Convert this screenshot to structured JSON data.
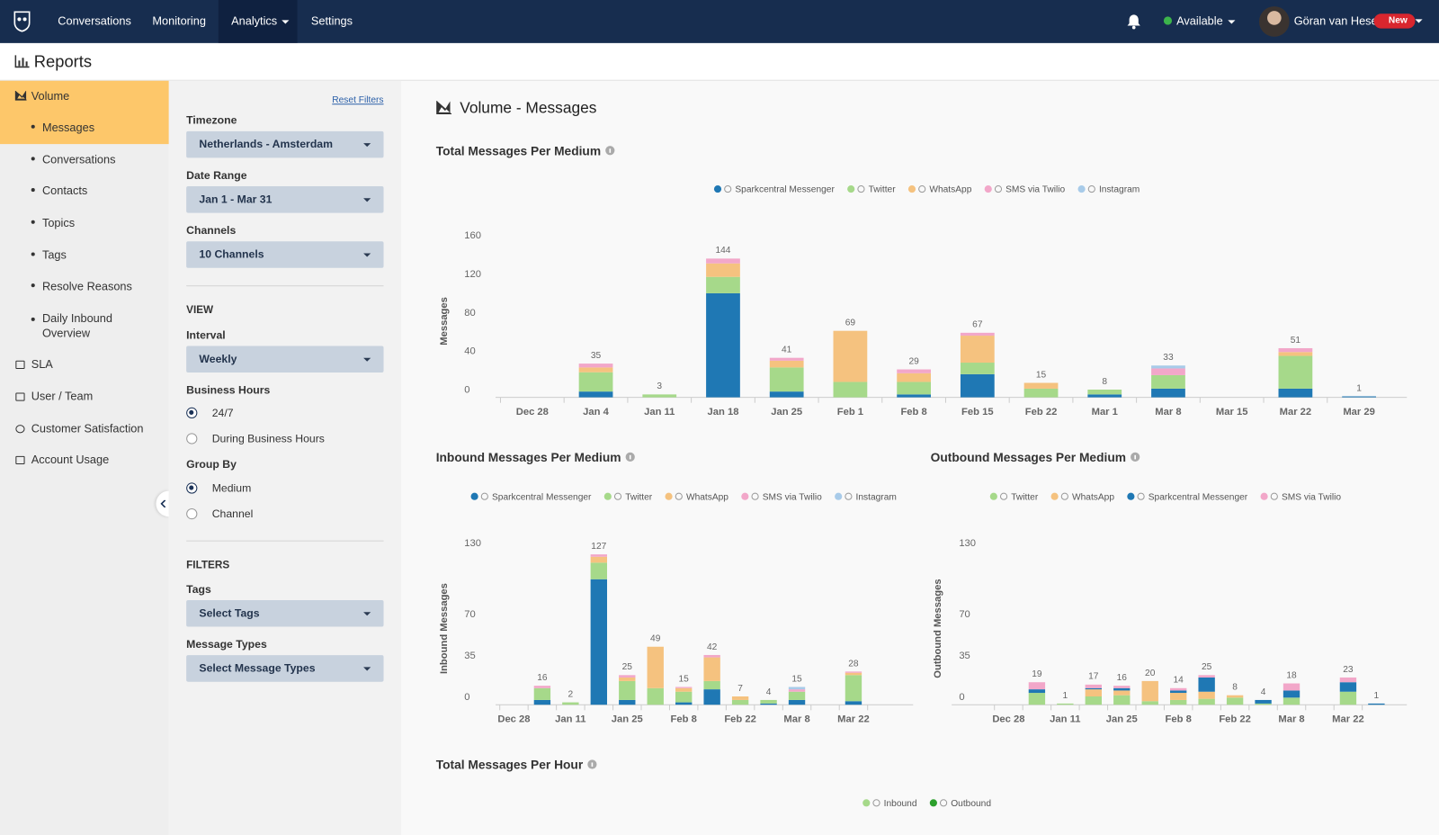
{
  "nav": {
    "items": [
      "Conversations",
      "Monitoring",
      "Analytics",
      "Settings"
    ],
    "status": "Available",
    "user": "Göran van Hese",
    "badge": "New"
  },
  "header": {
    "title": "Reports"
  },
  "sidebar": {
    "section": "Volume",
    "items": [
      "Messages",
      "Conversations",
      "Contacts",
      "Topics",
      "Tags",
      "Resolve Reasons",
      "Daily Inbound Overview"
    ],
    "sections": [
      "SLA",
      "User / Team",
      "Customer Satisfaction",
      "Account Usage"
    ]
  },
  "filters": {
    "reset": "Reset Filters",
    "fields": [
      {
        "label": "Timezone",
        "value": "Netherlands - Amsterdam"
      },
      {
        "label": "Date Range",
        "value": "Jan 1 - Mar 31"
      },
      {
        "label": "Channels",
        "value": "10 Channels"
      }
    ],
    "view": {
      "title": "VIEW",
      "interval": {
        "label": "Interval",
        "value": "Weekly"
      },
      "business_hours": {
        "label": "Business Hours",
        "options": [
          "24/7",
          "During Business Hours"
        ],
        "selected": 0
      },
      "group_by": {
        "label": "Group By",
        "options": [
          "Medium",
          "Channel"
        ],
        "selected": 0
      }
    },
    "filters_section": {
      "title": "FILTERS",
      "fields": [
        {
          "label": "Tags",
          "value": "Select Tags"
        },
        {
          "label": "Message Types",
          "value": "Select Message Types"
        }
      ]
    }
  },
  "main": {
    "title": "Volume - Messages"
  },
  "chart_data": [
    {
      "type": "bar",
      "stacked": true,
      "title": "Total Messages Per Medium",
      "y_label": "Messages",
      "categories": [
        "Dec 28",
        "Jan 4",
        "Jan 11",
        "Jan 18",
        "Jan 25",
        "Feb 1",
        "Feb 8",
        "Feb 15",
        "Feb 22",
        "Mar 1",
        "Mar 8",
        "Mar 15",
        "Mar 22",
        "Mar 29"
      ],
      "series": [
        {
          "name": "Sparkcentral Messenger",
          "color": "#1f78b4",
          "values": [
            null,
            6,
            null,
            108,
            6,
            null,
            3,
            24,
            null,
            3,
            9,
            null,
            9,
            1
          ]
        },
        {
          "name": "Twitter",
          "color": "#a6d98a",
          "values": [
            null,
            20,
            3,
            17,
            25,
            16,
            13,
            12,
            9,
            5,
            14,
            null,
            34,
            null
          ]
        },
        {
          "name": "WhatsApp",
          "color": "#f5c27f",
          "values": [
            null,
            5,
            null,
            14,
            7,
            53,
            9,
            28,
            6,
            null,
            null,
            null,
            4,
            null
          ]
        },
        {
          "name": "SMS via Twilio",
          "color": "#f2a7c9",
          "values": [
            null,
            4,
            null,
            5,
            3,
            null,
            4,
            3,
            null,
            null,
            7,
            null,
            4,
            null
          ]
        },
        {
          "name": "Instagram",
          "color": "#a8cbe9",
          "values": [
            null,
            null,
            null,
            null,
            null,
            null,
            null,
            null,
            null,
            null,
            3,
            null,
            null,
            null
          ]
        }
      ],
      "totals": [
        null,
        35,
        3,
        144,
        41,
        69,
        29,
        67,
        15,
        8,
        33,
        null,
        51,
        1
      ],
      "ylim": [
        0,
        160
      ],
      "yticks": [
        0,
        40,
        80,
        120,
        160
      ]
    },
    {
      "type": "bar",
      "stacked": true,
      "title": "Inbound Messages Per Medium",
      "y_label": "Inbound Messages",
      "categories": [
        "Dec 28",
        null,
        "Jan 11",
        null,
        "Jan 25",
        null,
        "Feb 8",
        null,
        "Feb 22",
        null,
        "Mar 8",
        null,
        "Mar 22",
        null
      ],
      "series": [
        {
          "name": "Sparkcentral Messenger",
          "color": "#1f78b4",
          "values": [
            null,
            4,
            null,
            106,
            4,
            null,
            2,
            13,
            null,
            1,
            4,
            null,
            3,
            null
          ]
        },
        {
          "name": "Twitter",
          "color": "#a6d98a",
          "values": [
            null,
            10,
            2,
            14,
            16,
            14,
            9,
            7,
            4,
            3,
            7,
            null,
            22,
            null
          ]
        },
        {
          "name": "WhatsApp",
          "color": "#f5c27f",
          "values": [
            null,
            null,
            null,
            5,
            3,
            35,
            3,
            20,
            3,
            null,
            null,
            null,
            2,
            null
          ]
        },
        {
          "name": "SMS via Twilio",
          "color": "#f2a7c9",
          "values": [
            null,
            2,
            null,
            2,
            2,
            null,
            1,
            2,
            null,
            null,
            2,
            null,
            1,
            null
          ]
        },
        {
          "name": "Instagram",
          "color": "#a8cbe9",
          "values": [
            null,
            null,
            null,
            null,
            null,
            null,
            null,
            null,
            null,
            null,
            2,
            null,
            null,
            null
          ]
        }
      ],
      "totals": [
        null,
        16,
        2,
        127,
        25,
        49,
        15,
        42,
        7,
        4,
        15,
        null,
        28,
        null
      ],
      "ylim": [
        0,
        130
      ],
      "yticks": [
        0,
        35,
        70,
        130
      ]
    },
    {
      "type": "bar",
      "stacked": true,
      "title": "Outbound Messages Per Medium",
      "y_label": "Outbound Messages",
      "categories": [
        "Dec 28",
        null,
        "Jan 11",
        null,
        "Jan 25",
        null,
        "Feb 8",
        null,
        "Feb 22",
        null,
        "Mar 8",
        null,
        "Mar 22",
        null
      ],
      "series": [
        {
          "name": "Twitter",
          "color": "#a6d98a",
          "values": [
            null,
            10,
            1,
            7,
            8,
            3,
            4,
            5,
            6,
            1,
            6,
            null,
            11,
            null
          ]
        },
        {
          "name": "WhatsApp",
          "color": "#f5c27f",
          "values": [
            null,
            null,
            null,
            6,
            4,
            17,
            6,
            6,
            2,
            null,
            null,
            null,
            null,
            null
          ]
        },
        {
          "name": "Sparkcentral Messenger",
          "color": "#1f78b4",
          "values": [
            null,
            3,
            null,
            1,
            2,
            null,
            2,
            12,
            null,
            3,
            6,
            null,
            8,
            1
          ]
        },
        {
          "name": "SMS via Twilio",
          "color": "#f2a7c9",
          "values": [
            null,
            6,
            null,
            3,
            2,
            null,
            2,
            2,
            null,
            null,
            6,
            null,
            4,
            null
          ]
        }
      ],
      "totals": [
        null,
        19,
        1,
        17,
        16,
        20,
        14,
        25,
        8,
        4,
        18,
        null,
        23,
        1
      ],
      "ylim": [
        0,
        130
      ],
      "yticks": [
        0,
        35,
        70,
        130
      ]
    },
    {
      "type": "legend-only",
      "title": "Total Messages Per Hour",
      "series": [
        {
          "name": "Inbound",
          "color": "#a6d98a"
        },
        {
          "name": "Outbound",
          "color": "#2ca02c"
        }
      ]
    }
  ]
}
